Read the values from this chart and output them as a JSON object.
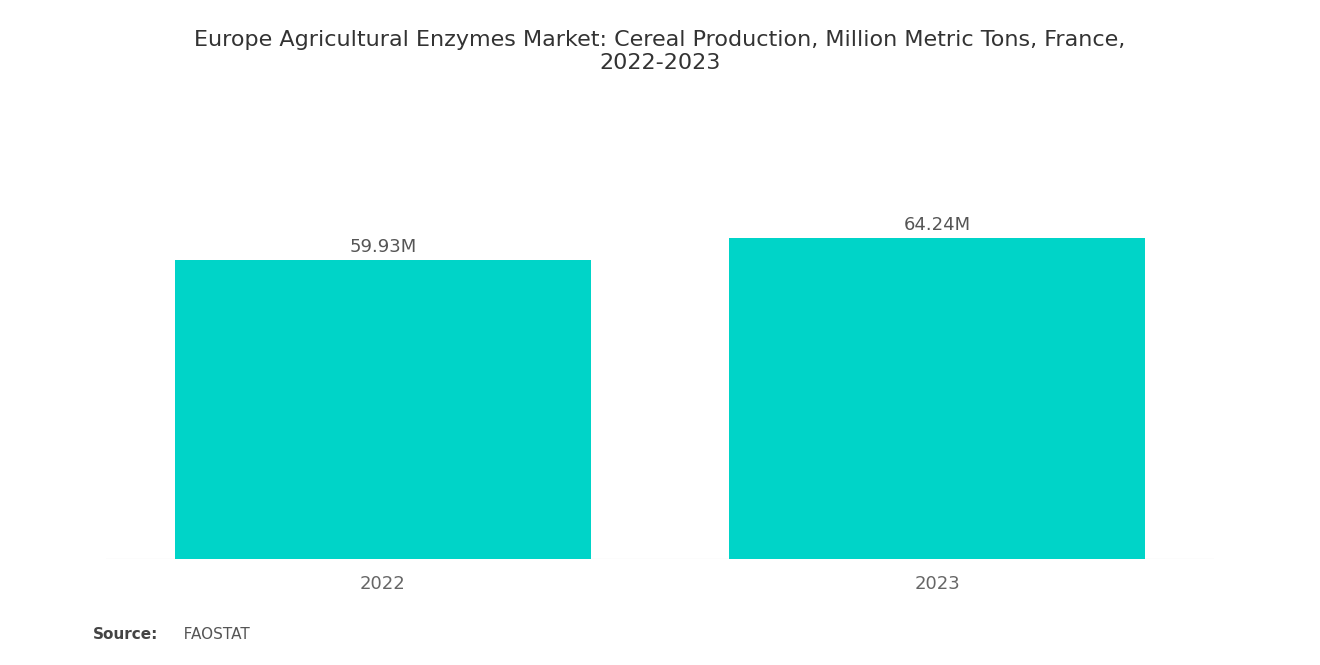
{
  "title": "Europe Agricultural Enzymes Market: Cereal Production, Million Metric Tons, France,\n2022-2023",
  "categories": [
    "2022",
    "2023"
  ],
  "values": [
    59.93,
    64.24
  ],
  "labels": [
    "59.93M",
    "64.24M"
  ],
  "bar_color": "#00D4C8",
  "background_color": "#ffffff",
  "title_fontsize": 16,
  "label_fontsize": 13,
  "tick_fontsize": 13,
  "source_bold": "Source:",
  "source_normal": "   FAOSTAT",
  "ylim": [
    0,
    80
  ],
  "bar_width": 0.75,
  "xlim": [
    -0.5,
    1.5
  ]
}
